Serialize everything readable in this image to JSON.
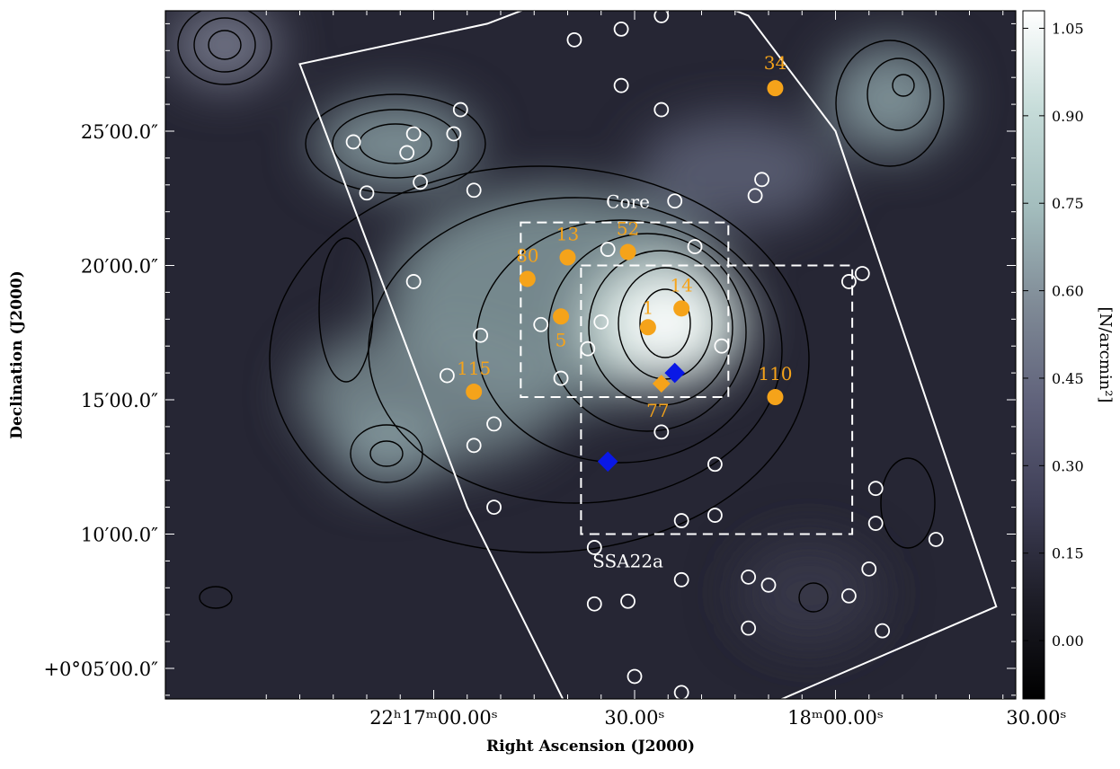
{
  "chart_data": {
    "type": "heatmap",
    "title": "",
    "xlabel": "Right Ascension (J2000)",
    "ylabel": "Declination (J2000)",
    "colorbar_label": "[N/arcmin²]",
    "x_ticks": [
      {
        "ra_s": 30,
        "label": "30.00ˢ"
      },
      {
        "ra_s": 0,
        "label": "18ᵐ00.00ˢ"
      },
      {
        "ra_s": -30,
        "label": "30.00ˢ"
      },
      {
        "ra_s": -60,
        "label": "22ʰ17ᵐ00.00ˢ"
      }
    ],
    "y_ticks": [
      {
        "dec_arcmin": 25,
        "label": "25′00.0″"
      },
      {
        "dec_arcmin": 20,
        "label": "20′00.0″"
      },
      {
        "dec_arcmin": 15,
        "label": "15′00.0″"
      },
      {
        "dec_arcmin": 10,
        "label": "10′00.0″"
      },
      {
        "dec_arcmin": 5,
        "label": "+0°05′00.0″"
      }
    ],
    "colorbar": {
      "range": [
        -0.1,
        1.08
      ],
      "ticks": [
        {
          "value": 1.05,
          "label": "1.05"
        },
        {
          "value": 0.9,
          "label": "0.90"
        },
        {
          "value": 0.75,
          "label": "0.75"
        },
        {
          "value": 0.6,
          "label": "0.60"
        },
        {
          "value": 0.45,
          "label": "0.45"
        },
        {
          "value": 0.3,
          "label": "0.30"
        },
        {
          "value": 0.15,
          "label": "0.15"
        },
        {
          "value": 0.0,
          "label": "0.00"
        }
      ],
      "colors": [
        "#000000",
        "#1d1d27",
        "#3f3f57",
        "#5f617a",
        "#7f8a96",
        "#a3bdbd",
        "#c6dcd9",
        "#ffffff"
      ]
    },
    "regions": [
      {
        "label": "Core",
        "ra_range_s": [
          -47,
          -16
        ],
        "dec_range_arcmin": [
          15.1,
          21.6
        ]
      },
      {
        "label": "SSA22a",
        "ra_range_s": [
          -38,
          2.5
        ],
        "dec_range_arcmin": [
          10.0,
          20.0
        ]
      }
    ],
    "numbered_sources": [
      {
        "label": "34",
        "ra_s": -9,
        "dec_arcmin": 26.6
      },
      {
        "label": "52",
        "ra_s": -31,
        "dec_arcmin": 20.5
      },
      {
        "label": "13",
        "ra_s": -40,
        "dec_arcmin": 20.3
      },
      {
        "label": "80",
        "ra_s": -46,
        "dec_arcmin": 19.5
      },
      {
        "label": "14",
        "ra_s": -23,
        "dec_arcmin": 18.4
      },
      {
        "label": "1",
        "ra_s": -28,
        "dec_arcmin": 17.7
      },
      {
        "label": "5",
        "ra_s": -41,
        "dec_arcmin": 18.1
      },
      {
        "label": "110",
        "ra_s": -9,
        "dec_arcmin": 15.1
      },
      {
        "label": "77",
        "ra_s": -26,
        "dec_arcmin": 15.6
      },
      {
        "label": "115",
        "ra_s": -54,
        "dec_arcmin": 15.3
      }
    ],
    "blue_diamonds": [
      {
        "ra_s": -24,
        "dec_arcmin": 16.0
      },
      {
        "ra_s": -34,
        "dec_arcmin": 12.7
      }
    ],
    "open_circles": [
      {
        "ra_s": -26,
        "dec_arcmin": 29.3
      },
      {
        "ra_s": -32,
        "dec_arcmin": 28.8
      },
      {
        "ra_s": -39,
        "dec_arcmin": 28.4
      },
      {
        "ra_s": -32,
        "dec_arcmin": 26.7
      },
      {
        "ra_s": -26,
        "dec_arcmin": 25.8
      },
      {
        "ra_s": -56,
        "dec_arcmin": 25.8
      },
      {
        "ra_s": -57,
        "dec_arcmin": 24.9
      },
      {
        "ra_s": -63,
        "dec_arcmin": 24.9
      },
      {
        "ra_s": -64,
        "dec_arcmin": 24.2
      },
      {
        "ra_s": -72,
        "dec_arcmin": 24.6
      },
      {
        "ra_s": -11,
        "dec_arcmin": 23.2
      },
      {
        "ra_s": -12,
        "dec_arcmin": 22.6
      },
      {
        "ra_s": -24,
        "dec_arcmin": 22.4
      },
      {
        "ra_s": -54,
        "dec_arcmin": 22.8
      },
      {
        "ra_s": -62,
        "dec_arcmin": 23.1
      },
      {
        "ra_s": -70,
        "dec_arcmin": 22.7
      },
      {
        "ra_s": -21,
        "dec_arcmin": 20.7
      },
      {
        "ra_s": -34,
        "dec_arcmin": 20.6
      },
      {
        "ra_s": 4,
        "dec_arcmin": 19.7
      },
      {
        "ra_s": 2,
        "dec_arcmin": 19.4
      },
      {
        "ra_s": -63,
        "dec_arcmin": 19.4
      },
      {
        "ra_s": -35,
        "dec_arcmin": 17.9
      },
      {
        "ra_s": -44,
        "dec_arcmin": 17.8
      },
      {
        "ra_s": -53,
        "dec_arcmin": 17.4
      },
      {
        "ra_s": -17,
        "dec_arcmin": 17.0
      },
      {
        "ra_s": -37,
        "dec_arcmin": 16.9
      },
      {
        "ra_s": -58,
        "dec_arcmin": 15.9
      },
      {
        "ra_s": -41,
        "dec_arcmin": 15.8
      },
      {
        "ra_s": -26,
        "dec_arcmin": 13.8
      },
      {
        "ra_s": -51,
        "dec_arcmin": 14.1
      },
      {
        "ra_s": -54,
        "dec_arcmin": 13.3
      },
      {
        "ra_s": 6,
        "dec_arcmin": 11.7
      },
      {
        "ra_s": -18,
        "dec_arcmin": 12.6
      },
      {
        "ra_s": 6,
        "dec_arcmin": 10.4
      },
      {
        "ra_s": -18,
        "dec_arcmin": 10.7
      },
      {
        "ra_s": -23,
        "dec_arcmin": 10.5
      },
      {
        "ra_s": -51,
        "dec_arcmin": 11.0
      },
      {
        "ra_s": 15,
        "dec_arcmin": 9.8
      },
      {
        "ra_s": -36,
        "dec_arcmin": 9.5
      },
      {
        "ra_s": 5,
        "dec_arcmin": 8.7
      },
      {
        "ra_s": -13,
        "dec_arcmin": 8.4
      },
      {
        "ra_s": -10,
        "dec_arcmin": 8.1
      },
      {
        "ra_s": -23,
        "dec_arcmin": 8.3
      },
      {
        "ra_s": 2,
        "dec_arcmin": 7.7
      },
      {
        "ra_s": -31,
        "dec_arcmin": 7.5
      },
      {
        "ra_s": -36,
        "dec_arcmin": 7.4
      },
      {
        "ra_s": 7,
        "dec_arcmin": 6.4
      },
      {
        "ra_s": -13,
        "dec_arcmin": 6.5
      },
      {
        "ra_s": -30,
        "dec_arcmin": 4.7
      },
      {
        "ra_s": -23,
        "dec_arcmin": 4.1
      }
    ],
    "survey_footprint": [
      {
        "ra_s": -31,
        "dec_arcmin": 31.0
      },
      {
        "ra_s": -52,
        "dec_arcmin": 29.0
      },
      {
        "ra_s": -80,
        "dec_arcmin": 27.5
      },
      {
        "ra_s": -55,
        "dec_arcmin": 11.0
      },
      {
        "ra_s": -37,
        "dec_arcmin": 2.0
      },
      {
        "ra_s": -16,
        "dec_arcmin": 3.0
      },
      {
        "ra_s": 24,
        "dec_arcmin": 7.3
      },
      {
        "ra_s": 0,
        "dec_arcmin": 25.0
      },
      {
        "ra_s": -13,
        "dec_arcmin": 29.3
      }
    ]
  }
}
